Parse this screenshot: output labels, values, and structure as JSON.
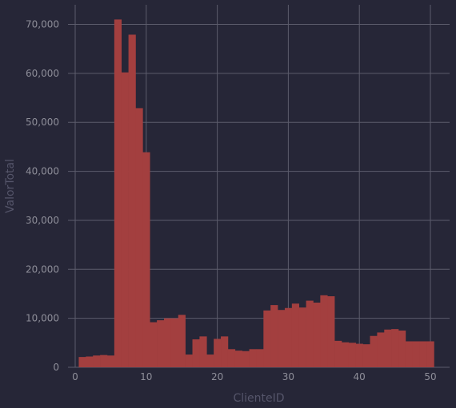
{
  "chart_data": {
    "type": "bar",
    "xlabel": "ClienteID",
    "ylabel": "ValorTotal",
    "xlim": [
      0,
      51
    ],
    "ylim": [
      0,
      74000
    ],
    "x_ticks": [
      0,
      10,
      20,
      30,
      40,
      50
    ],
    "y_ticks": [
      0,
      10000,
      20000,
      30000,
      40000,
      50000,
      60000,
      70000
    ],
    "y_tick_labels": [
      "0",
      "10,000",
      "20,000",
      "30,000",
      "40,000",
      "50,000",
      "60,000",
      "70,000"
    ],
    "grid": true,
    "bar_color": "#a33f3f",
    "x": [
      1,
      2,
      3,
      4,
      5,
      6,
      7,
      8,
      9,
      10,
      11,
      12,
      13,
      14,
      15,
      16,
      17,
      18,
      19,
      20,
      21,
      22,
      23,
      24,
      25,
      26,
      27,
      28,
      29,
      30,
      31,
      32,
      33,
      34,
      35,
      36,
      37,
      38,
      39,
      40,
      41,
      42,
      43,
      44,
      45,
      46,
      47,
      48,
      49,
      50
    ],
    "values": [
      2100,
      2200,
      2400,
      2500,
      2400,
      71000,
      60200,
      67900,
      52900,
      43900,
      9200,
      9600,
      10000,
      10000,
      10700,
      2600,
      5700,
      6300,
      2600,
      5800,
      6300,
      3700,
      3400,
      3300,
      3700,
      3700,
      11600,
      12700,
      11700,
      12100,
      13000,
      12200,
      13600,
      13200,
      14700,
      14500,
      5400,
      5100,
      5000,
      4800,
      4700,
      6400,
      7100,
      7700,
      7800,
      7500,
      5300,
      5300,
      5300,
      5300
    ]
  }
}
